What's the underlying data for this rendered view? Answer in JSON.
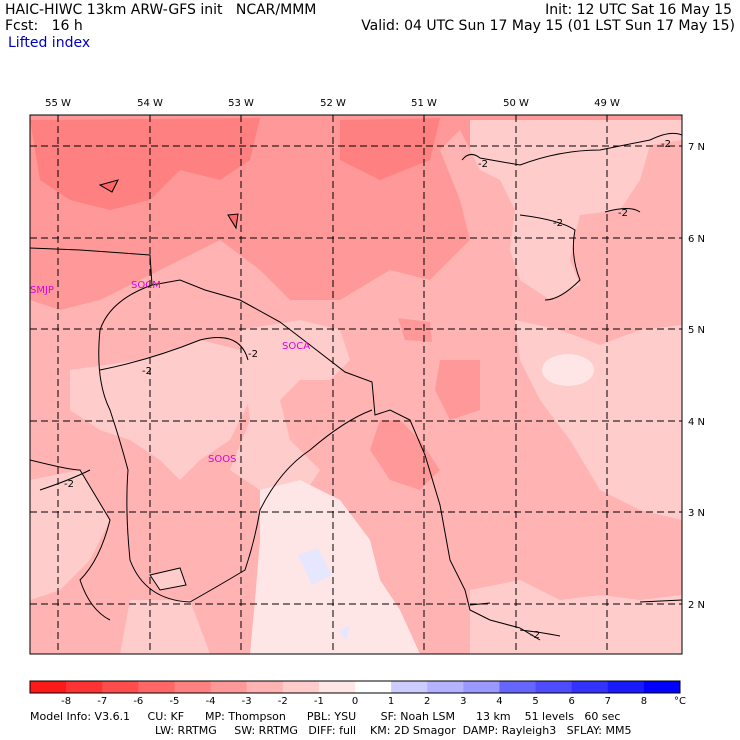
{
  "header": {
    "title": "HAIC-HIWC 13km ARW-GFS init   NCAR/MMM",
    "fcst": "Fcst:   16 h",
    "field": "Lifted index",
    "init": "Init: 12 UTC Sat 16 May 15",
    "valid": "Valid: 04 UTC Sun 17 May 15 (01 LST Sun 17 May 15)"
  },
  "map": {
    "lon_labels": [
      "55 W",
      "54 W",
      "53 W",
      "52 W",
      "51 W",
      "50 W",
      "49 W"
    ],
    "lat_labels": [
      "7 N",
      "6 N",
      "5 N",
      "4 N",
      "3 N",
      "2 N"
    ],
    "stations": [
      {
        "id": "SMJP"
      },
      {
        "id": "SOCM"
      },
      {
        "id": "SOCA"
      },
      {
        "id": "SOOS"
      }
    ],
    "contour_labels": [
      "-2",
      "-2",
      "-2",
      "-2",
      "-2",
      "-2",
      "-2",
      "-2"
    ]
  },
  "colorbar": {
    "ticks": [
      "-8",
      "-7",
      "-6",
      "-5",
      "-4",
      "-3",
      "-2",
      "-1",
      "0",
      "1",
      "2",
      "3",
      "4",
      "5",
      "6",
      "7",
      "8"
    ],
    "unit": "°C",
    "colors": [
      "#ff1a1a",
      "#ff3333",
      "#ff4d4d",
      "#ff6666",
      "#ff8080",
      "#ff9999",
      "#ffb3b3",
      "#ffcccc",
      "#ffe6e6",
      "#ffffff",
      "#ccccff",
      "#b3b3ff",
      "#9999ff",
      "#6666ff",
      "#4d4dff",
      "#3333ff",
      "#1a1aff",
      "#0000ff"
    ]
  },
  "footer": {
    "line1": "Model Info: V3.6.1     CU: KF      MP: Thompson      PBL: YSU       SF: Noah LSM      13 km    51 levels   60 sec",
    "line2": "LW: RRTMG     SW: RRTMG   DIFF: full    KM: 2D Smagor  DAMP: Rayleigh3   SFLAY: MM5"
  }
}
